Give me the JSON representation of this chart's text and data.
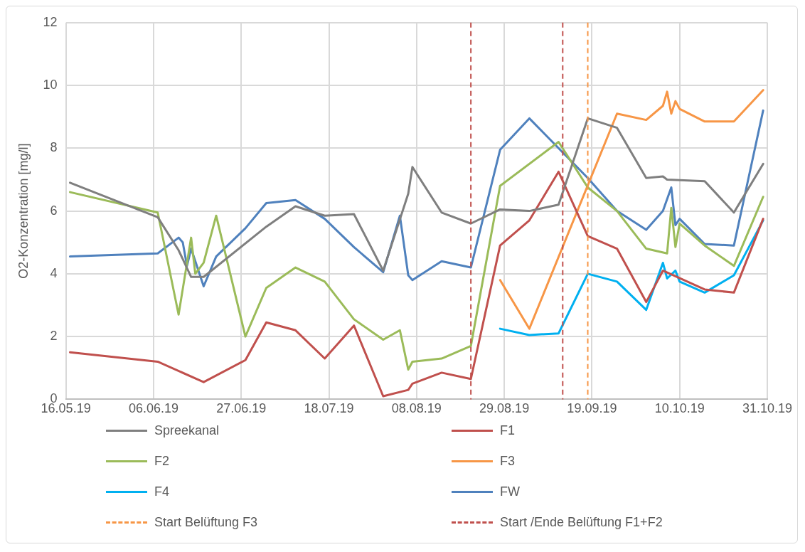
{
  "chart_data": {
    "type": "line",
    "ylabel": "O2-Konzentration [mg/l]",
    "xlim": [
      "2019-05-16",
      "2019-10-31"
    ],
    "xticks": [
      {
        "value": "2019-05-16",
        "label": "16.05.19"
      },
      {
        "value": "2019-06-06",
        "label": "06.06.19"
      },
      {
        "value": "2019-06-27",
        "label": "27.06.19"
      },
      {
        "value": "2019-07-18",
        "label": "18.07.19"
      },
      {
        "value": "2019-08-08",
        "label": "08.08.19"
      },
      {
        "value": "2019-08-29",
        "label": "29.08.19"
      },
      {
        "value": "2019-09-19",
        "label": "19.09.19"
      },
      {
        "value": "2019-10-10",
        "label": "10.10.19"
      },
      {
        "value": "2019-10-31",
        "label": "31.10.19"
      }
    ],
    "ylim": [
      0,
      12
    ],
    "yticks": [
      0,
      2,
      4,
      6,
      8,
      10,
      12
    ],
    "grid": true,
    "legend": "bottom",
    "marker": "none",
    "line_style": "solid",
    "series": [
      {
        "name": "Spreekanal",
        "color": "#7f7f7f",
        "x": [
          "2019-05-17",
          "2019-06-07",
          "2019-06-12",
          "2019-06-15",
          "2019-06-18",
          "2019-07-03",
          "2019-07-10",
          "2019-07-17",
          "2019-07-24",
          "2019-07-31",
          "2019-08-06",
          "2019-08-07",
          "2019-08-14",
          "2019-08-21",
          "2019-08-28",
          "2019-09-04",
          "2019-09-11",
          "2019-09-18",
          "2019-09-25",
          "2019-10-02",
          "2019-10-06",
          "2019-10-07",
          "2019-10-16",
          "2019-10-23",
          "2019-10-30"
        ],
        "values": [
          6.9,
          5.8,
          4.75,
          3.9,
          3.9,
          5.5,
          6.15,
          5.85,
          5.9,
          4.1,
          6.55,
          7.4,
          5.95,
          5.6,
          6.05,
          6.0,
          6.2,
          8.95,
          8.65,
          7.05,
          7.1,
          7.0,
          6.95,
          5.95,
          7.5
        ]
      },
      {
        "name": "F1",
        "color": "#c0504d",
        "x": [
          "2019-05-17",
          "2019-06-07",
          "2019-06-18",
          "2019-06-28",
          "2019-07-03",
          "2019-07-10",
          "2019-07-17",
          "2019-07-24",
          "2019-07-31",
          "2019-08-06",
          "2019-08-07",
          "2019-08-14",
          "2019-08-21",
          "2019-08-28",
          "2019-09-04",
          "2019-09-11",
          "2019-09-18",
          "2019-09-25",
          "2019-10-02",
          "2019-10-06",
          "2019-10-16",
          "2019-10-23",
          "2019-10-30"
        ],
        "values": [
          1.5,
          1.2,
          0.55,
          1.25,
          2.45,
          2.2,
          1.3,
          2.35,
          0.1,
          0.3,
          0.5,
          0.85,
          0.65,
          4.9,
          5.7,
          7.25,
          5.2,
          4.8,
          3.1,
          4.1,
          3.5,
          3.4,
          5.75
        ]
      },
      {
        "name": "F2",
        "color": "#9bbb59",
        "x": [
          "2019-05-17",
          "2019-06-07",
          "2019-06-12",
          "2019-06-15",
          "2019-06-16",
          "2019-06-18",
          "2019-06-21",
          "2019-06-28",
          "2019-07-03",
          "2019-07-10",
          "2019-07-17",
          "2019-07-24",
          "2019-07-31",
          "2019-08-04",
          "2019-08-06",
          "2019-08-07",
          "2019-08-14",
          "2019-08-21",
          "2019-08-28",
          "2019-09-11",
          "2019-09-18",
          "2019-09-25",
          "2019-10-02",
          "2019-10-07",
          "2019-10-08",
          "2019-10-09",
          "2019-10-10",
          "2019-10-16",
          "2019-10-23",
          "2019-10-30"
        ],
        "values": [
          6.6,
          5.95,
          2.7,
          5.15,
          4.0,
          4.35,
          5.85,
          2.0,
          3.55,
          4.2,
          3.75,
          2.55,
          1.9,
          2.2,
          0.95,
          1.2,
          1.3,
          1.7,
          6.8,
          8.2,
          6.75,
          6.0,
          4.8,
          4.65,
          6.1,
          4.85,
          5.6,
          4.9,
          4.25,
          6.45
        ]
      },
      {
        "name": "F3",
        "color": "#f79646",
        "x": [
          "2019-08-28",
          "2019-09-04",
          "2019-09-25",
          "2019-10-02",
          "2019-10-06",
          "2019-10-07",
          "2019-10-08",
          "2019-10-09",
          "2019-10-10",
          "2019-10-16",
          "2019-10-23",
          "2019-10-30"
        ],
        "values": [
          3.8,
          2.25,
          9.1,
          8.9,
          9.35,
          9.8,
          9.1,
          9.5,
          9.25,
          8.85,
          8.85,
          9.85
        ]
      },
      {
        "name": "F4",
        "color": "#00b0f0",
        "x": [
          "2019-08-28",
          "2019-09-04",
          "2019-09-11",
          "2019-09-18",
          "2019-09-25",
          "2019-10-02",
          "2019-10-06",
          "2019-10-07",
          "2019-10-09",
          "2019-10-10",
          "2019-10-16",
          "2019-10-23",
          "2019-10-30"
        ],
        "values": [
          2.25,
          2.05,
          2.1,
          4.0,
          3.75,
          2.85,
          4.35,
          3.85,
          4.1,
          3.75,
          3.4,
          3.95,
          5.7
        ]
      },
      {
        "name": "FW",
        "color": "#4f81bd",
        "x": [
          "2019-05-17",
          "2019-06-07",
          "2019-06-12",
          "2019-06-13",
          "2019-06-14",
          "2019-06-15",
          "2019-06-18",
          "2019-06-21",
          "2019-06-28",
          "2019-07-03",
          "2019-07-10",
          "2019-07-17",
          "2019-07-24",
          "2019-07-31",
          "2019-08-04",
          "2019-08-06",
          "2019-08-07",
          "2019-08-14",
          "2019-08-21",
          "2019-08-28",
          "2019-09-04",
          "2019-09-18",
          "2019-09-25",
          "2019-10-02",
          "2019-10-06",
          "2019-10-08",
          "2019-10-09",
          "2019-10-10",
          "2019-10-16",
          "2019-10-23",
          "2019-10-30"
        ],
        "values": [
          4.55,
          4.65,
          5.15,
          5.0,
          4.25,
          4.8,
          3.6,
          4.55,
          5.45,
          6.25,
          6.35,
          5.75,
          4.85,
          4.05,
          5.85,
          3.95,
          3.8,
          4.4,
          4.2,
          7.95,
          8.95,
          7.05,
          6.0,
          5.4,
          6.0,
          6.75,
          5.55,
          5.75,
          4.95,
          4.9,
          9.2
        ]
      }
    ],
    "ref_lines": [
      {
        "axis": "x",
        "value": "2019-09-18",
        "label": "Start Belüftung F3",
        "color": "#f79646",
        "line_style": "dashed"
      },
      {
        "axis": "x",
        "value": "2019-08-21",
        "label": "Start /Ende Belüftung F1+F2",
        "color": "#c0504d",
        "line_style": "dashed"
      },
      {
        "axis": "x",
        "value": "2019-09-12",
        "color": "#c0504d",
        "line_style": "dashed"
      }
    ]
  }
}
